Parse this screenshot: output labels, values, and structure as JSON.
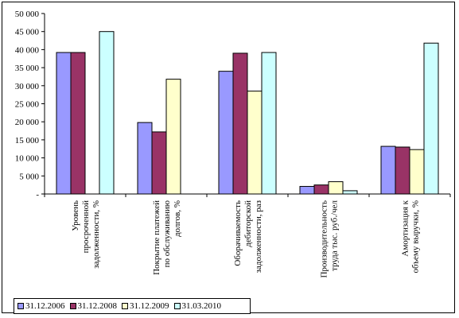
{
  "chart_data": {
    "type": "bar",
    "title": "",
    "xlabel": "",
    "ylabel": "",
    "ylim": [
      0,
      50000
    ],
    "y_ticks": [
      "-",
      "5 000",
      "10 000",
      "15 000",
      "20 000",
      "25 000",
      "30 000",
      "35 000",
      "40 000",
      "45 000",
      "50 000"
    ],
    "y_tick_values": [
      0,
      5000,
      10000,
      15000,
      20000,
      25000,
      30000,
      35000,
      40000,
      45000,
      50000
    ],
    "grid": false,
    "legend_position": "bottom-left",
    "categories": [
      [
        "Уровень",
        "просроченной",
        "задолженности, %"
      ],
      [
        "Покрытие платежей",
        "по обслуживанию",
        "долгов, %"
      ],
      [
        "Оборачиваемость",
        "дебиторской",
        "задолженности, раз"
      ],
      [
        "Производительность",
        "труда тыс. руб./чел"
      ],
      [
        "Амортизация к",
        "объему выручки, %"
      ]
    ],
    "series": [
      {
        "name": "31.12.2006",
        "color": "#9999ff",
        "values": [
          39200,
          19800,
          34000,
          2100,
          13200
        ]
      },
      {
        "name": "31.12.2008",
        "color": "#993366",
        "values": [
          39200,
          17200,
          39000,
          2500,
          13000
        ]
      },
      {
        "name": "31.12.2009",
        "color": "#ffffcc",
        "values": [
          0,
          31800,
          28500,
          3400,
          12300
        ]
      },
      {
        "name": "31.03.2010",
        "color": "#ccffff",
        "values": [
          45000,
          0,
          39200,
          900,
          41800
        ]
      }
    ]
  }
}
